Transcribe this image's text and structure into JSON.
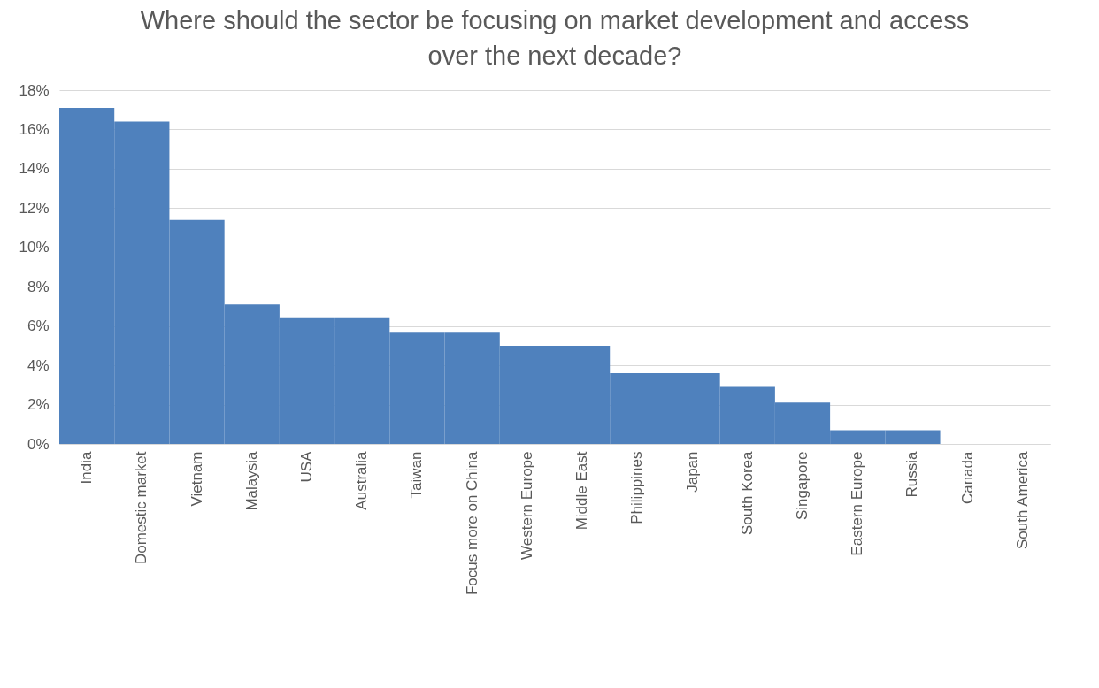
{
  "chart_data": {
    "type": "bar",
    "title": "Where should the sector be focusing on market development and access over the next decade?",
    "categories": [
      "India",
      "Domestic market",
      "Vietnam",
      "Malaysia",
      "USA",
      "Australia",
      "Taiwan",
      "Focus more on China",
      "Western Europe",
      "Middle East",
      "Philippines",
      "Japan",
      "South Korea",
      "Singapore",
      "Eastern Europe",
      "Russia",
      "Canada",
      "South America"
    ],
    "values": [
      17.1,
      16.4,
      11.4,
      7.1,
      6.4,
      6.4,
      5.7,
      5.7,
      5.0,
      5.0,
      3.6,
      3.6,
      2.9,
      2.1,
      0.7,
      0.7,
      0,
      0
    ],
    "color": "#4f81bd",
    "ylim": [
      0,
      18
    ],
    "yticks": [
      {
        "value": 0,
        "label": "0%"
      },
      {
        "value": 2,
        "label": "2%"
      },
      {
        "value": 4,
        "label": "4%"
      },
      {
        "value": 6,
        "label": "6%"
      },
      {
        "value": 8,
        "label": "8%"
      },
      {
        "value": 10,
        "label": "10%"
      },
      {
        "value": 12,
        "label": "12%"
      },
      {
        "value": 14,
        "label": "14%"
      },
      {
        "value": 16,
        "label": "16%"
      },
      {
        "value": 18,
        "label": "18%"
      }
    ],
    "grid": "y"
  }
}
